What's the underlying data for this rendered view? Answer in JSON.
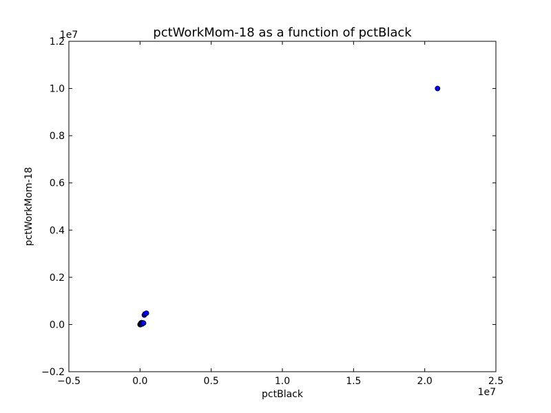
{
  "chart_data": {
    "type": "scatter",
    "title": "pctWorkMom-18 as a function of pctBlack",
    "xlabel": "pctBlack",
    "ylabel": "pctWorkMom-18",
    "xlim": [
      -5000000,
      25000000
    ],
    "ylim": [
      -2000000,
      12000000
    ],
    "x_ticks": [
      -5000000,
      0,
      5000000,
      10000000,
      15000000,
      20000000,
      25000000
    ],
    "x_tick_labels": [
      "−0.5",
      "0.0",
      "0.5",
      "1.0",
      "1.5",
      "2.0",
      "2.5"
    ],
    "y_ticks": [
      -2000000,
      0,
      2000000,
      4000000,
      6000000,
      8000000,
      10000000,
      12000000
    ],
    "y_tick_labels": [
      "−0.2",
      "0.0",
      "0.2",
      "0.4",
      "0.6",
      "0.8",
      "1.0",
      "1.2"
    ],
    "x_offset_label": "1e7",
    "y_offset_label": "1e7",
    "grid": false,
    "point_color": "#0000ff",
    "series": [
      {
        "points": [
          [
            0,
            0
          ],
          [
            10000,
            10000
          ],
          [
            20000,
            -10000
          ],
          [
            30000,
            20000
          ],
          [
            50000,
            30000
          ],
          [
            60000,
            60000
          ],
          [
            80000,
            40000
          ],
          [
            100000,
            80000
          ],
          [
            120000,
            50000
          ],
          [
            150000,
            20000
          ],
          [
            200000,
            70000
          ],
          [
            250000,
            60000
          ],
          [
            300000,
            400000
          ],
          [
            350000,
            450000
          ],
          [
            450000,
            480000
          ],
          [
            20900000,
            10000000
          ]
        ]
      }
    ]
  }
}
